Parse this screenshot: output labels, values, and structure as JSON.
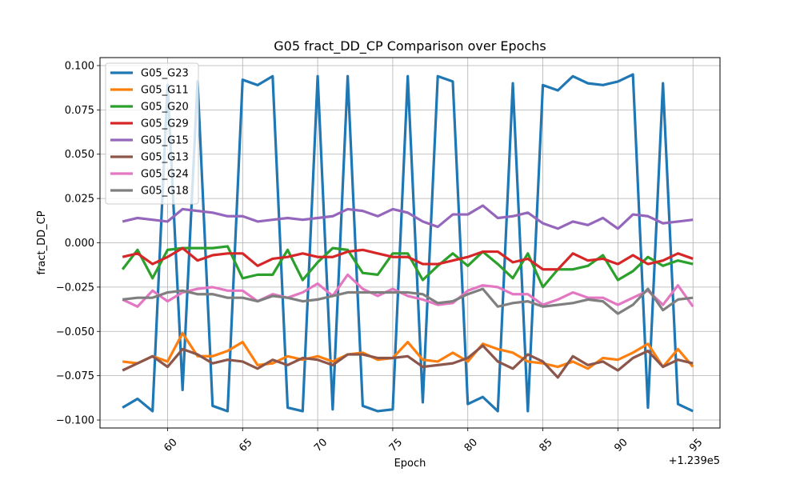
{
  "chart_data": {
    "type": "line",
    "title": "G05 fract_DD_CP Comparison over Epochs",
    "xlabel": "Epoch",
    "ylabel": "fract_DD_CP",
    "x_offset_label": "+1.239e5",
    "x": [
      57,
      58,
      59,
      60,
      61,
      62,
      63,
      64,
      65,
      66,
      67,
      68,
      69,
      70,
      71,
      72,
      73,
      74,
      75,
      76,
      77,
      78,
      79,
      80,
      81,
      82,
      83,
      84,
      85,
      86,
      87,
      88,
      89,
      90,
      91,
      92,
      93,
      94,
      95
    ],
    "xlim": [
      55.5,
      96.8
    ],
    "ylim": [
      -0.1045,
      0.1045
    ],
    "xticks": [
      60,
      65,
      70,
      75,
      80,
      85,
      90,
      95
    ],
    "yticks": [
      -0.1,
      -0.075,
      -0.05,
      -0.025,
      0.0,
      0.025,
      0.05,
      0.075,
      0.1
    ],
    "xtick_labels": [
      "60",
      "65",
      "70",
      "75",
      "80",
      "85",
      "90",
      "95"
    ],
    "ytick_labels": [
      "−0.100",
      "−0.075",
      "−0.050",
      "−0.025",
      "0.000",
      "0.025",
      "0.050",
      "0.075",
      "0.100"
    ],
    "grid": true,
    "legend_position": "top-left",
    "series": [
      {
        "name": "G05_G23",
        "color": "#1f77b4",
        "values": [
          -0.093,
          -0.088,
          -0.095,
          0.089,
          -0.083,
          0.091,
          -0.092,
          -0.095,
          0.092,
          0.089,
          0.094,
          -0.093,
          -0.095,
          0.094,
          -0.094,
          0.094,
          -0.092,
          -0.095,
          -0.094,
          0.094,
          -0.09,
          0.094,
          0.091,
          -0.091,
          -0.087,
          -0.095,
          0.09,
          -0.095,
          0.089,
          0.086,
          0.094,
          0.09,
          0.089,
          0.091,
          0.095,
          -0.093,
          0.09,
          -0.091,
          -0.095
        ]
      },
      {
        "name": "G05_G11",
        "color": "#ff7f0e",
        "values": [
          -0.067,
          -0.068,
          -0.064,
          -0.067,
          -0.051,
          -0.064,
          -0.064,
          -0.061,
          -0.056,
          -0.069,
          -0.068,
          -0.064,
          -0.066,
          -0.064,
          -0.067,
          -0.063,
          -0.062,
          -0.066,
          -0.065,
          -0.056,
          -0.066,
          -0.067,
          -0.062,
          -0.067,
          -0.057,
          -0.06,
          -0.062,
          -0.067,
          -0.068,
          -0.07,
          -0.067,
          -0.071,
          -0.065,
          -0.066,
          -0.062,
          -0.057,
          -0.07,
          -0.06,
          -0.07
        ]
      },
      {
        "name": "G05_G20",
        "color": "#2ca02c",
        "values": [
          -0.015,
          -0.004,
          -0.02,
          -0.004,
          -0.003,
          -0.003,
          -0.003,
          -0.002,
          -0.02,
          -0.018,
          -0.018,
          -0.004,
          -0.021,
          -0.011,
          -0.003,
          -0.004,
          -0.017,
          -0.018,
          -0.006,
          -0.006,
          -0.021,
          -0.013,
          -0.006,
          -0.013,
          -0.005,
          -0.012,
          -0.02,
          -0.006,
          -0.025,
          -0.015,
          -0.015,
          -0.013,
          -0.007,
          -0.021,
          -0.016,
          -0.008,
          -0.013,
          -0.01,
          -0.012
        ]
      },
      {
        "name": "G05_G29",
        "color": "#d62728",
        "values": [
          -0.008,
          -0.006,
          -0.012,
          -0.008,
          -0.003,
          -0.01,
          -0.007,
          -0.006,
          -0.006,
          -0.013,
          -0.009,
          -0.008,
          -0.006,
          -0.008,
          -0.008,
          -0.005,
          -0.004,
          -0.006,
          -0.008,
          -0.008,
          -0.012,
          -0.012,
          -0.01,
          -0.008,
          -0.005,
          -0.005,
          -0.011,
          -0.009,
          -0.015,
          -0.015,
          -0.006,
          -0.01,
          -0.009,
          -0.012,
          -0.007,
          -0.012,
          -0.01,
          -0.006,
          -0.009
        ]
      },
      {
        "name": "G05_G15",
        "color": "#9467bd",
        "values": [
          0.012,
          0.014,
          0.013,
          0.012,
          0.019,
          0.018,
          0.017,
          0.015,
          0.015,
          0.012,
          0.013,
          0.014,
          0.013,
          0.014,
          0.015,
          0.019,
          0.018,
          0.015,
          0.019,
          0.017,
          0.012,
          0.009,
          0.016,
          0.016,
          0.021,
          0.014,
          0.015,
          0.017,
          0.011,
          0.008,
          0.012,
          0.01,
          0.014,
          0.008,
          0.016,
          0.015,
          0.011,
          0.012,
          0.013
        ]
      },
      {
        "name": "G05_G13",
        "color": "#8c564b",
        "values": [
          -0.072,
          -0.068,
          -0.064,
          -0.07,
          -0.06,
          -0.063,
          -0.068,
          -0.066,
          -0.067,
          -0.071,
          -0.066,
          -0.069,
          -0.065,
          -0.066,
          -0.069,
          -0.063,
          -0.063,
          -0.065,
          -0.065,
          -0.064,
          -0.07,
          -0.069,
          -0.068,
          -0.065,
          -0.058,
          -0.067,
          -0.071,
          -0.063,
          -0.067,
          -0.076,
          -0.064,
          -0.069,
          -0.067,
          -0.072,
          -0.065,
          -0.061,
          -0.07,
          -0.066,
          -0.068
        ]
      },
      {
        "name": "G05_G24",
        "color": "#e377c2",
        "values": [
          -0.032,
          -0.036,
          -0.027,
          -0.033,
          -0.028,
          -0.026,
          -0.025,
          -0.027,
          -0.027,
          -0.033,
          -0.029,
          -0.031,
          -0.028,
          -0.023,
          -0.03,
          -0.018,
          -0.026,
          -0.03,
          -0.026,
          -0.03,
          -0.032,
          -0.035,
          -0.034,
          -0.027,
          -0.024,
          -0.025,
          -0.029,
          -0.029,
          -0.035,
          -0.032,
          -0.028,
          -0.031,
          -0.031,
          -0.035,
          -0.031,
          -0.027,
          -0.035,
          -0.024,
          -0.036
        ]
      },
      {
        "name": "G05_G18",
        "color": "#7f7f7f",
        "values": [
          -0.032,
          -0.031,
          -0.031,
          -0.028,
          -0.027,
          -0.029,
          -0.029,
          -0.031,
          -0.031,
          -0.033,
          -0.03,
          -0.031,
          -0.033,
          -0.032,
          -0.03,
          -0.028,
          -0.028,
          -0.028,
          -0.028,
          -0.028,
          -0.029,
          -0.034,
          -0.033,
          -0.029,
          -0.026,
          -0.036,
          -0.034,
          -0.033,
          -0.036,
          -0.035,
          -0.034,
          -0.032,
          -0.033,
          -0.04,
          -0.035,
          -0.026,
          -0.038,
          -0.032,
          -0.031
        ]
      }
    ]
  }
}
